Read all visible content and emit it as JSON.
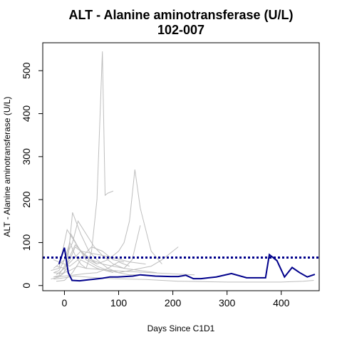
{
  "chart_data": {
    "type": "line",
    "title": "ALT - Alanine aminotransferase (U/L)",
    "subtitle": "102-007",
    "xlabel": "Days Since C1D1",
    "ylabel": "ALT - Alanine aminotransferase (U/L)",
    "xlim": [
      -40,
      470
    ],
    "ylim": [
      -12,
      565
    ],
    "xticks": [
      0,
      100,
      200,
      300,
      400
    ],
    "yticks": [
      0,
      100,
      200,
      300,
      400,
      500
    ],
    "reference_line": {
      "y": 65,
      "color": "#00008B",
      "style": "dotted"
    },
    "colors": {
      "highlight": "#00008B",
      "background": "#BEBEBE"
    },
    "highlight_series": {
      "name": "102-007",
      "x": [
        -10,
        0,
        7,
        14,
        28,
        42,
        56,
        70,
        84,
        98,
        112,
        126,
        140,
        168,
        196,
        210,
        224,
        238,
        252,
        266,
        280,
        308,
        336,
        350,
        364,
        371,
        378,
        392,
        406,
        420,
        434,
        448,
        462
      ],
      "y": [
        50,
        88,
        30,
        12,
        11,
        13,
        15,
        17,
        20,
        20,
        21,
        22,
        25,
        22,
        21,
        21,
        24,
        16,
        16,
        18,
        20,
        28,
        18,
        18,
        18,
        18,
        72,
        58,
        20,
        42,
        30,
        20,
        26
      ]
    },
    "other_series": [
      {
        "x": [
          -20,
          -10,
          0,
          10,
          20,
          30,
          40,
          50,
          60,
          70,
          75,
          80,
          90
        ],
        "y": [
          30,
          35,
          60,
          100,
          70,
          50,
          40,
          80,
          200,
          545,
          210,
          215,
          220
        ]
      },
      {
        "x": [
          -15,
          0,
          10,
          20,
          40,
          60,
          80,
          100,
          110,
          120,
          130,
          140,
          160,
          180
        ],
        "y": [
          25,
          40,
          60,
          90,
          70,
          50,
          60,
          80,
          100,
          150,
          270,
          180,
          80,
          50
        ]
      },
      {
        "x": [
          -20,
          -5,
          5,
          15,
          30,
          45,
          60,
          80,
          100,
          120,
          140,
          160,
          180,
          200,
          210
        ],
        "y": [
          20,
          25,
          40,
          170,
          120,
          80,
          60,
          40,
          30,
          35,
          40,
          45,
          60,
          80,
          90
        ]
      },
      {
        "x": [
          -20,
          0,
          15,
          25,
          40,
          55,
          70,
          90,
          110,
          125,
          140
        ],
        "y": [
          40,
          60,
          100,
          150,
          120,
          90,
          70,
          50,
          40,
          60,
          140
        ]
      },
      {
        "x": [
          -25,
          -10,
          0,
          12,
          25,
          40,
          60,
          80,
          100,
          120,
          150
        ],
        "y": [
          15,
          20,
          30,
          120,
          90,
          60,
          45,
          35,
          30,
          25,
          25
        ]
      },
      {
        "x": [
          -20,
          0,
          10,
          20,
          35,
          50,
          70,
          90,
          110
        ],
        "y": [
          60,
          50,
          45,
          55,
          70,
          90,
          80,
          60,
          55
        ]
      },
      {
        "x": [
          -20,
          -5,
          10,
          25,
          40,
          60,
          80,
          100,
          130,
          160,
          190,
          220,
          240
        ],
        "y": [
          30,
          28,
          35,
          45,
          40,
          38,
          36,
          34,
          32,
          30,
          28,
          26,
          25
        ]
      },
      {
        "x": [
          -15,
          0,
          15,
          30,
          50,
          70,
          90,
          120,
          150
        ],
        "y": [
          45,
          40,
          60,
          80,
          75,
          70,
          65,
          55,
          50
        ]
      },
      {
        "x": [
          -20,
          0,
          20,
          40,
          60,
          80,
          100,
          120
        ],
        "y": [
          20,
          22,
          25,
          28,
          30,
          40,
          55,
          45
        ]
      },
      {
        "x": [
          -10,
          5,
          20,
          35,
          50,
          70,
          90,
          110,
          140,
          170
        ],
        "y": [
          25,
          55,
          95,
          75,
          60,
          50,
          45,
          40,
          35,
          30
        ]
      },
      {
        "x": [
          -20,
          0,
          20,
          40,
          60,
          90,
          120,
          150,
          180,
          210,
          250,
          300,
          350,
          400,
          440,
          460
        ],
        "y": [
          15,
          18,
          22,
          20,
          18,
          16,
          15,
          14,
          12,
          10,
          9,
          8,
          8,
          8,
          10,
          12
        ]
      },
      {
        "x": [
          -25,
          -10,
          5,
          15,
          30,
          45,
          60
        ],
        "y": [
          35,
          40,
          130,
          110,
          80,
          60,
          50
        ]
      },
      {
        "x": [
          -15,
          0,
          15,
          30,
          45,
          60,
          75,
          90
        ],
        "y": [
          10,
          12,
          30,
          60,
          50,
          40,
          35,
          30
        ]
      }
    ]
  }
}
